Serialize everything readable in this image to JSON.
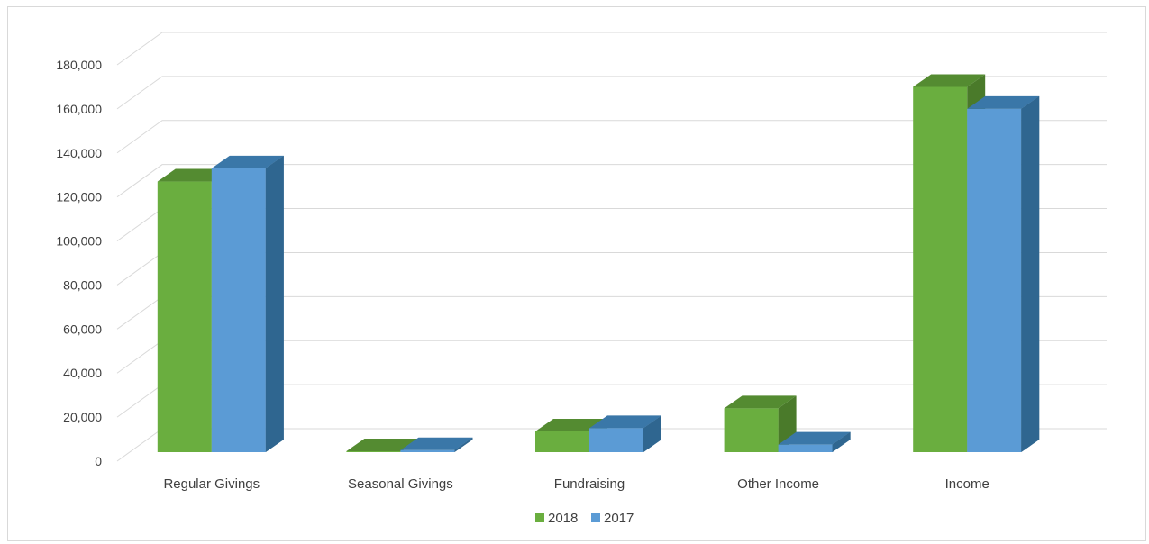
{
  "chart_data": {
    "type": "bar",
    "style": "3d-clustered-column",
    "categories": [
      "Regular Givings",
      "Seasonal Givings",
      "Fundraising",
      "Other Income",
      "Income"
    ],
    "series": [
      {
        "name": "2018",
        "values": [
          127000,
          4500,
          13500,
          24000,
          170000
        ],
        "color": "#6aae3f",
        "side_color": "#4a7a2a",
        "top_color": "#548b31"
      },
      {
        "name": "2017",
        "values": [
          133000,
          5000,
          15000,
          7500,
          160000
        ],
        "color": "#5b9bd5",
        "side_color": "#2f6690",
        "top_color": "#3a77a8"
      }
    ],
    "ylim": [
      0,
      180000
    ],
    "y_ticks": [
      "0",
      "20,000",
      "40,000",
      "60,000",
      "80,000",
      "100,000",
      "120,000",
      "140,000",
      "160,000",
      "180,000"
    ],
    "grid": true,
    "legend_position": "bottom",
    "title": "",
    "xlabel": "",
    "ylabel": ""
  }
}
